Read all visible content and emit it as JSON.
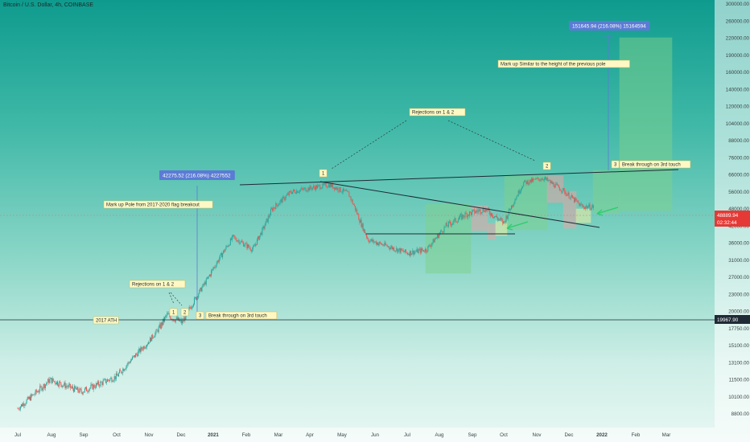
{
  "header": {
    "title": "Bitcoin / U.S. Dollar, 4h, COINBASE"
  },
  "colors": {
    "bull": "#26a69a",
    "bear": "#ef5350",
    "line": "#1f2a36",
    "price_tag": "#e53935",
    "ath_tag": "#1f2a36",
    "measure": "#5b7bd5",
    "green_box": "#7fd18c",
    "red_box": "#f2a3a3",
    "yellow_box": "#fff3a0",
    "arrow": "#2ecc71"
  },
  "chart_data": {
    "type": "candlestick",
    "title": "Bitcoin / U.S. Dollar, 4h, COINBASE",
    "y_scale": "log",
    "ylim": [
      8200,
      300000
    ],
    "y_ticks": [
      "300000.00",
      "260000.00",
      "220000.00",
      "190000.00",
      "160000.00",
      "140000.00",
      "120000.00",
      "104000.00",
      "88000.00",
      "76000.00",
      "66000.00",
      "56000.00",
      "48000.00",
      "42000.00",
      "36000.00",
      "31000.00",
      "27000.00",
      "23000.00",
      "20000.00",
      "17750.00",
      "15100.00",
      "13100.00",
      "11500.00",
      "10100.00",
      "8800.00"
    ],
    "x_ticks": [
      "Jul",
      "Aug",
      "Sep",
      "Oct",
      "Nov",
      "Dec",
      "2021",
      "Feb",
      "Mar",
      "Apr",
      "May",
      "Jun",
      "Jul",
      "Aug",
      "Sep",
      "Oct",
      "Nov",
      "Dec",
      "2022",
      "Feb",
      "Mar"
    ],
    "last_price": "48889.94",
    "countdown": "02:32:44",
    "ath_level": "19967.90",
    "series": [
      {
        "values": [
          [
            2020.5,
            9200
          ],
          [
            2020.58,
            11500
          ],
          [
            2020.66,
            10500
          ],
          [
            2020.75,
            11800
          ],
          [
            2020.83,
            15500
          ],
          [
            2020.88,
            19500
          ],
          [
            2020.92,
            18500
          ],
          [
            2020.96,
            23000
          ],
          [
            2021.0,
            29000
          ],
          [
            2021.05,
            38000
          ],
          [
            2021.1,
            34000
          ],
          [
            2021.15,
            48000
          ],
          [
            2021.2,
            56000
          ],
          [
            2021.25,
            58000
          ],
          [
            2021.3,
            60000
          ],
          [
            2021.35,
            55000
          ],
          [
            2021.4,
            37000
          ],
          [
            2021.45,
            35000
          ],
          [
            2021.5,
            33000
          ],
          [
            2021.55,
            34000
          ],
          [
            2021.6,
            42000
          ],
          [
            2021.65,
            46000
          ],
          [
            2021.7,
            48000
          ],
          [
            2021.75,
            43000
          ],
          [
            2021.8,
            61000
          ],
          [
            2021.85,
            64000
          ],
          [
            2021.9,
            57000
          ],
          [
            2021.95,
            49000
          ],
          [
            2021.98,
            48890
          ]
        ]
      }
    ],
    "annotations": [
      "2017 ATH",
      "Mark up Pole from 2017-2020 flag breakout",
      "Rejections on 1 &amp;  2",
      "1",
      "2",
      "3",
      "Break through on 3rd touch",
      "Rejections on 1 &amp;  2",
      "1",
      "2",
      "3",
      "Break through on 3rd touch",
      "Mark up Similar to the height of the previous pole"
    ],
    "measures": [
      "42275.52 (216.08%) 4227552",
      "151645.94 (216.08%) 15164594"
    ]
  }
}
